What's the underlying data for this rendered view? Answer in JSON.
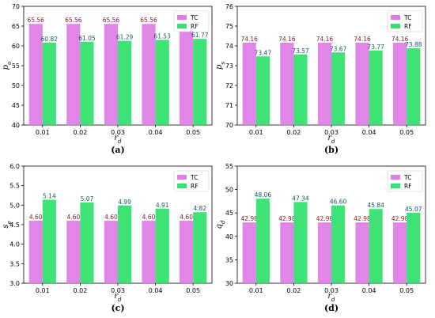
{
  "colors": {
    "TC": "#e07ee8",
    "RF": "#35e06e",
    "axis": "#000000",
    "tc_label": "#7a1a2a",
    "rf_label": "#0f5a5a"
  },
  "chart_data": [
    {
      "type": "bar",
      "caption": "(a)",
      "categories": [
        "0.01",
        "0.02",
        "0.03",
        "0.04",
        "0.05"
      ],
      "series": [
        {
          "name": "TC",
          "values": [
            65.56,
            65.56,
            65.56,
            65.56,
            65.56
          ],
          "labels": [
            "65.56",
            "65.56",
            "65.56",
            "65.56",
            "65.56"
          ]
        },
        {
          "name": "RF",
          "values": [
            60.82,
            61.05,
            61.29,
            61.53,
            61.77
          ],
          "labels": [
            "60.82",
            "61.05",
            "61.29",
            "61.53",
            "61.77"
          ]
        }
      ],
      "xlabel": "r_d",
      "ylabel": "p_o",
      "ylim": [
        40,
        70
      ],
      "yticks": [
        "40",
        "45",
        "50",
        "55",
        "60",
        "65",
        "70"
      ],
      "legend_position": "top-right",
      "grid": false
    },
    {
      "type": "bar",
      "caption": "(b)",
      "categories": [
        "0.01",
        "0.02",
        "0.03",
        "0.04",
        "0.05"
      ],
      "series": [
        {
          "name": "TC",
          "values": [
            74.16,
            74.16,
            74.16,
            74.16,
            74.16
          ],
          "labels": [
            "74.16",
            "74.16",
            "74.16",
            "74.16",
            "74.16"
          ]
        },
        {
          "name": "RF",
          "values": [
            73.47,
            73.57,
            73.67,
            73.77,
            73.88
          ],
          "labels": [
            "73.47",
            "73.57",
            "73.67",
            "73.77",
            "73.88"
          ]
        }
      ],
      "xlabel": "r_d",
      "ylabel": "p_s",
      "ylim": [
        70,
        76
      ],
      "yticks": [
        "70",
        "71",
        "72",
        "73",
        "74",
        "75",
        "76"
      ],
      "legend_position": "top-right",
      "grid": false
    },
    {
      "type": "bar",
      "caption": "(c)",
      "categories": [
        "0.01",
        "0.02",
        "0.03",
        "0.04",
        "0.05"
      ],
      "series": [
        {
          "name": "TC",
          "values": [
            4.6,
            4.6,
            4.6,
            4.6,
            4.6
          ],
          "labels": [
            "4.60",
            "4.60",
            "4.60",
            "4.60",
            "4.60"
          ]
        },
        {
          "name": "RF",
          "values": [
            5.14,
            5.07,
            4.99,
            4.91,
            4.82
          ],
          "labels": [
            "5.14",
            "5.07",
            "4.99",
            "4.91",
            "4.82"
          ]
        }
      ],
      "xlabel": "r_d",
      "ylabel": "s_e",
      "ylim": [
        3.0,
        6.0
      ],
      "yticks": [
        "3.0",
        "3.5",
        "4.0",
        "4.5",
        "5.0",
        "5.5",
        "6.0"
      ],
      "legend_position": "top-right",
      "grid": false
    },
    {
      "type": "bar",
      "caption": "(d)",
      "categories": [
        "0.01",
        "0.02",
        "0.03",
        "0.04",
        "0.05"
      ],
      "series": [
        {
          "name": "TC",
          "values": [
            42.98,
            42.98,
            42.98,
            42.98,
            42.98
          ],
          "labels": [
            "42.98",
            "42.98",
            "42.98",
            "42.98",
            "42.98"
          ]
        },
        {
          "name": "RF",
          "values": [
            48.06,
            47.34,
            46.6,
            45.84,
            45.07
          ],
          "labels": [
            "48.06",
            "47.34",
            "46.60",
            "45.84",
            "45.07"
          ]
        }
      ],
      "xlabel": "r_d",
      "ylabel": "q_d",
      "ylim": [
        30,
        55
      ],
      "yticks": [
        "30",
        "35",
        "40",
        "45",
        "50",
        "55"
      ],
      "legend_position": "top-right",
      "grid": false
    }
  ]
}
